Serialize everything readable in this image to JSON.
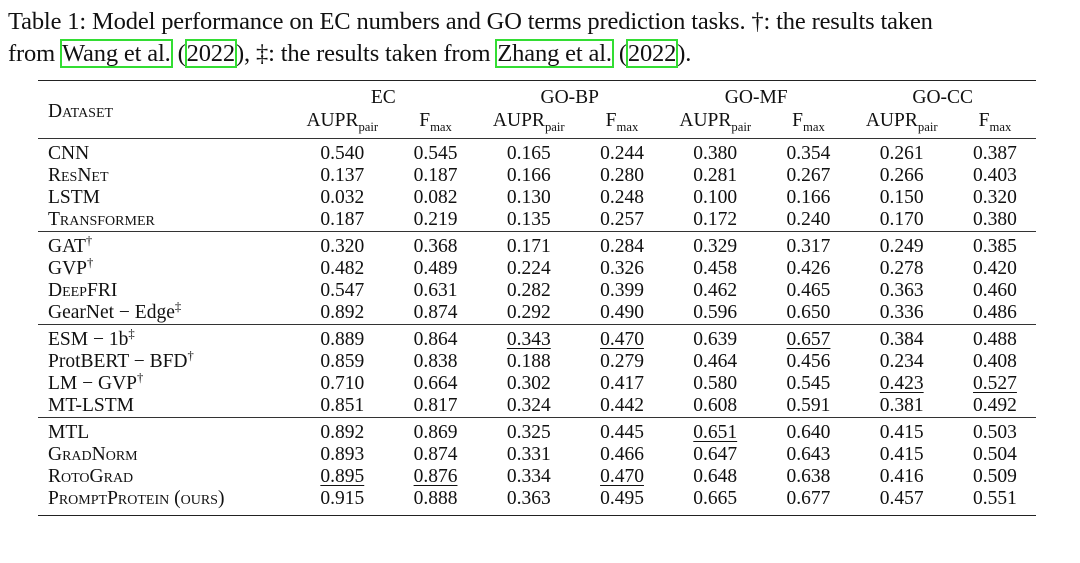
{
  "caption": {
    "line1": "Table 1: Model performance on EC numbers and GO terms prediction tasks. †: the results taken",
    "line2_pre": "from ",
    "cite1_author": "Wang et al.",
    "cite1_open": " (",
    "cite1_year": "2022",
    "cite1_close": ")",
    "line2_mid": ", ‡: the results taken from ",
    "cite2_author": "Zhang et al.",
    "cite2_open": " (",
    "cite2_year": "2022",
    "cite2_close": ").",
    "highlight_color": "#33dd33"
  },
  "table": {
    "dataset_header": "Dataset",
    "groups": [
      "EC",
      "GO-BP",
      "GO-MF",
      "GO-CC"
    ],
    "metric_aupr": "AUPR",
    "metric_aupr_sub": "pair",
    "metric_f": "F",
    "metric_f_sub": "max",
    "rows": [
      {
        "name": "CNN",
        "sup": "",
        "vals": [
          "0.540",
          "0.545",
          "0.165",
          "0.244",
          "0.380",
          "0.354",
          "0.261",
          "0.387"
        ]
      },
      {
        "name": "ResNet",
        "sup": "",
        "vals": [
          "0.137",
          "0.187",
          "0.166",
          "0.280",
          "0.281",
          "0.267",
          "0.266",
          "0.403"
        ]
      },
      {
        "name": "LSTM",
        "sup": "",
        "vals": [
          "0.032",
          "0.082",
          "0.130",
          "0.248",
          "0.100",
          "0.166",
          "0.150",
          "0.320"
        ]
      },
      {
        "name": "Transformer",
        "sup": "",
        "vals": [
          "0.187",
          "0.219",
          "0.135",
          "0.257",
          "0.172",
          "0.240",
          "0.170",
          "0.380"
        ]
      },
      {
        "name": "GAT",
        "sup": "†",
        "vals": [
          "0.320",
          "0.368",
          "0.171",
          "0.284",
          "0.329",
          "0.317",
          "0.249",
          "0.385"
        ]
      },
      {
        "name": "GVP",
        "sup": "†",
        "vals": [
          "0.482",
          "0.489",
          "0.224",
          "0.326",
          "0.458",
          "0.426",
          "0.278",
          "0.420"
        ]
      },
      {
        "name": "DeepFRI",
        "sup": "",
        "vals": [
          "0.547",
          "0.631",
          "0.282",
          "0.399",
          "0.462",
          "0.465",
          "0.363",
          "0.460"
        ]
      },
      {
        "name": "GearNet − Edge",
        "sup": "‡",
        "vals": [
          "0.892",
          "0.874",
          "0.292",
          "0.490",
          "0.596",
          "0.650",
          "0.336",
          "0.486"
        ]
      },
      {
        "name": "ESM − 1b",
        "sup": "‡",
        "vals": [
          "0.889",
          "0.864",
          "0.343",
          "0.470",
          "0.639",
          "0.657",
          "0.384",
          "0.488"
        ]
      },
      {
        "name": "ProtBERT − BFD",
        "sup": "†",
        "vals": [
          "0.859",
          "0.838",
          "0.188",
          "0.279",
          "0.464",
          "0.456",
          "0.234",
          "0.408"
        ]
      },
      {
        "name": "LM − GVP",
        "sup": "†",
        "vals": [
          "0.710",
          "0.664",
          "0.302",
          "0.417",
          "0.580",
          "0.545",
          "0.423",
          "0.527"
        ]
      },
      {
        "name": "MT-LSTM",
        "sup": "",
        "vals": [
          "0.851",
          "0.817",
          "0.324",
          "0.442",
          "0.608",
          "0.591",
          "0.381",
          "0.492"
        ]
      },
      {
        "name": "MTL",
        "sup": "",
        "vals": [
          "0.892",
          "0.869",
          "0.325",
          "0.445",
          "0.651",
          "0.640",
          "0.415",
          "0.503"
        ]
      },
      {
        "name": "GradNorm",
        "sup": "",
        "vals": [
          "0.893",
          "0.874",
          "0.331",
          "0.466",
          "0.647",
          "0.643",
          "0.415",
          "0.504"
        ]
      },
      {
        "name": "RotoGrad",
        "sup": "",
        "vals": [
          "0.895",
          "0.876",
          "0.334",
          "0.470",
          "0.648",
          "0.638",
          "0.416",
          "0.509"
        ]
      },
      {
        "name": "PromptProtein (ours)",
        "sup": "",
        "vals": [
          "0.915",
          "0.888",
          "0.363",
          "0.495",
          "0.665",
          "0.677",
          "0.457",
          "0.551"
        ]
      }
    ]
  }
}
